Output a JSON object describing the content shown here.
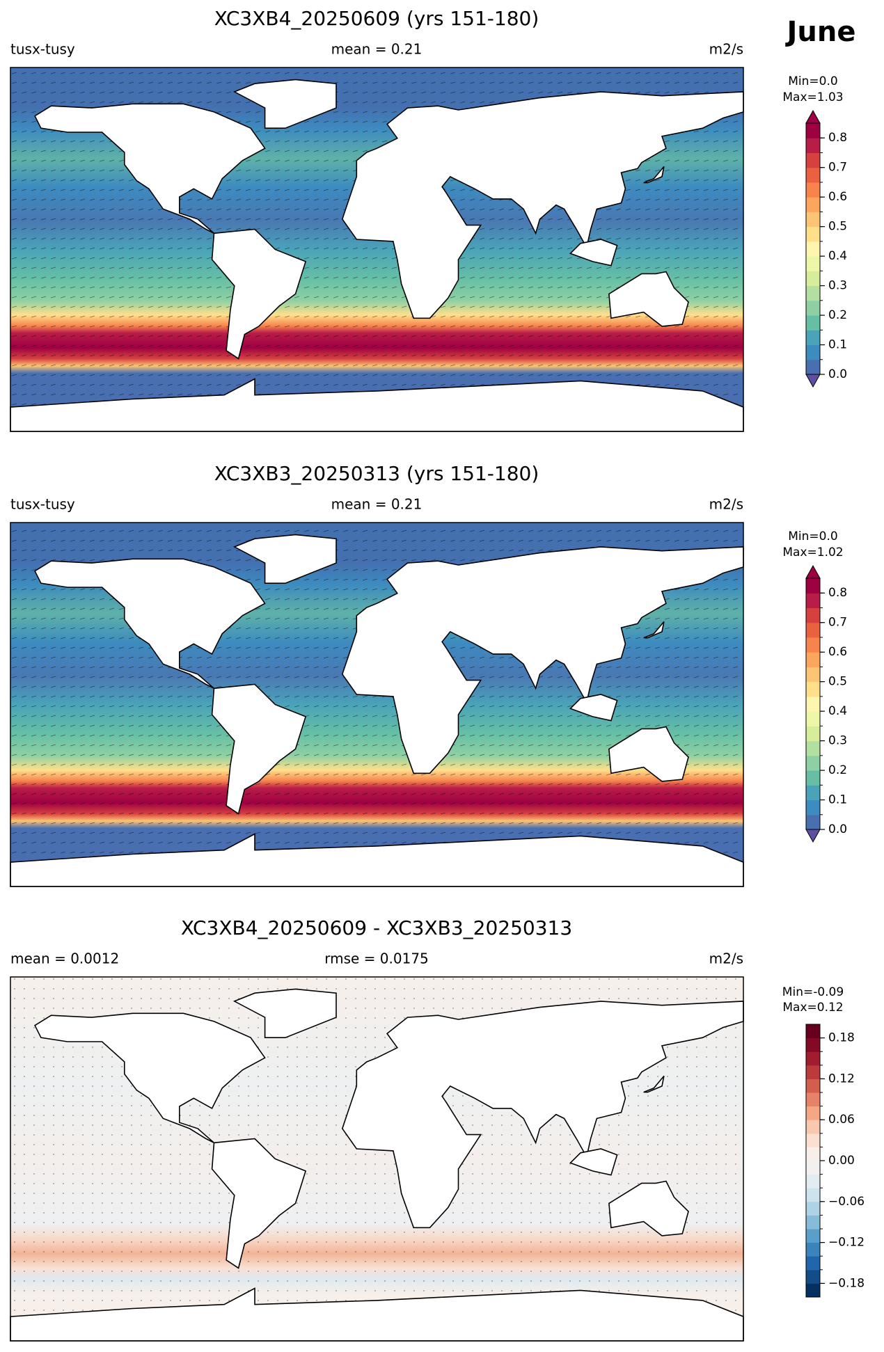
{
  "title": "June",
  "panels": [
    {
      "title": "XC3XB4_20250609 (yrs 151-180)",
      "left": "tusx-tusy",
      "center": "mean = 0.21",
      "right": "m2/s",
      "colorbar": {
        "min_label": "Min=0.0",
        "max_label": "Max=1.03",
        "lim": [
          0,
          0.85
        ],
        "ticks": [
          {
            "value": 0,
            "label": "0.0"
          },
          0.1,
          0.2,
          0.3,
          0.4,
          0.5,
          0.6,
          0.7,
          0.8
        ],
        "colors": [
          "#4a6fb0",
          "#3d8bbf",
          "#4aa3b9",
          "#66bfa5",
          "#8ed0a4",
          "#b3e0a0",
          "#d6ee9b",
          "#eef7a8",
          "#fef5ae",
          "#fee08b",
          "#fdc474",
          "#fca55d",
          "#f7834d",
          "#e9613f",
          "#d5413f",
          "#b81d48",
          "#9e0142"
        ],
        "under_color": "#5e4fa2",
        "over_color": "#9e0142"
      }
    },
    {
      "title": "XC3XB3_20250313 (yrs 151-180)",
      "left": "tusx-tusy",
      "center": "mean = 0.21",
      "right": "m2/s",
      "colorbar": {
        "min_label": "Min=0.0",
        "max_label": "Max=1.02",
        "lim": [
          0,
          0.85
        ],
        "ticks": [
          {
            "value": 0,
            "label": "0.0"
          },
          0.1,
          0.2,
          0.3,
          0.4,
          0.5,
          0.6,
          0.7,
          0.8
        ],
        "colors": [
          "#4a6fb0",
          "#3d8bbf",
          "#4aa3b9",
          "#66bfa5",
          "#8ed0a4",
          "#b3e0a0",
          "#d6ee9b",
          "#eef7a8",
          "#fef5ae",
          "#fee08b",
          "#fdc474",
          "#fca55d",
          "#f7834d",
          "#e9613f",
          "#d5413f",
          "#b81d48",
          "#9e0142"
        ],
        "under_color": "#5e4fa2",
        "over_color": "#9e0142"
      }
    },
    {
      "title": "XC3XB4_20250609 - XC3XB3_20250313",
      "left": "mean = 0.0012",
      "center": "rmse = 0.0175",
      "right": "m2/s",
      "colorbar": {
        "min_label": "Min=-0.09",
        "max_label": "Max=0.12",
        "lim": [
          -0.2,
          0.2
        ],
        "ticks": [
          {
            "value": -0.18,
            "label": "−0.18"
          },
          {
            "value": -0.12,
            "label": "−0.12"
          },
          {
            "value": -0.06,
            "label": "−0.06"
          },
          {
            "value": 0,
            "label": "0.00"
          },
          0.06,
          0.12,
          0.18
        ],
        "colors": [
          "#053061",
          "#134c87",
          "#2166ac",
          "#3a84bb",
          "#5a9fcb",
          "#86bcda",
          "#afd3e6",
          "#cde3ee",
          "#e2edf3",
          "#f2f1f0",
          "#f7efea",
          "#fbe0d2",
          "#f8c9b0",
          "#f3a883",
          "#e58267",
          "#d25f4d",
          "#bb3a3b",
          "#a01c2e",
          "#830a25",
          "#67001f"
        ]
      }
    }
  ]
}
